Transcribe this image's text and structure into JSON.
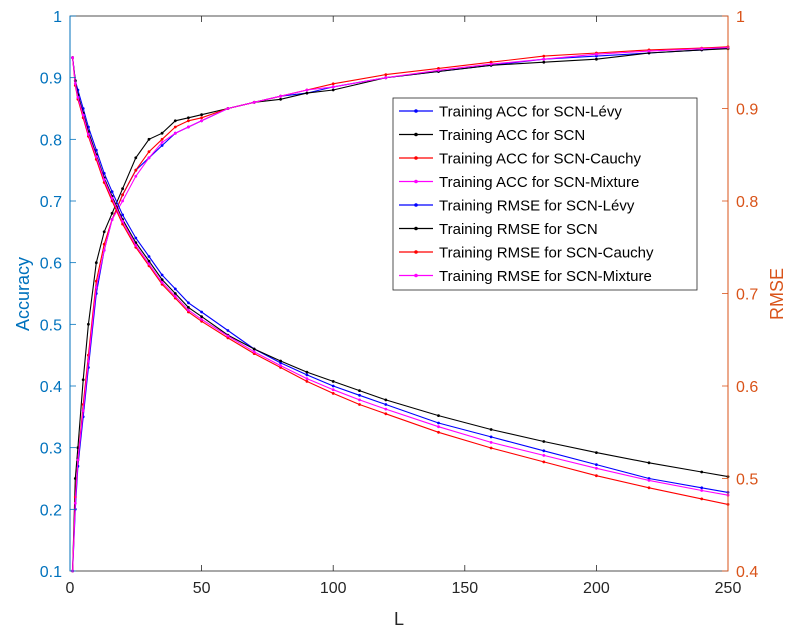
{
  "chart_data": {
    "type": "line",
    "xlabel": "L",
    "ylabel_left": "Accuracy",
    "ylabel_right": "RMSE",
    "xlim": [
      0,
      250
    ],
    "ylim_left": [
      0.1,
      1
    ],
    "ylim_right": [
      0.4,
      1
    ],
    "xticks": [
      "0",
      "50",
      "100",
      "150",
      "200",
      "250"
    ],
    "yticks_left": [
      "0.1",
      "0.2",
      "0.3",
      "0.4",
      "0.5",
      "0.6",
      "0.7",
      "0.8",
      "0.9",
      "1"
    ],
    "yticks_right": [
      "0.4",
      "0.5",
      "0.6",
      "0.7",
      "0.8",
      "0.9",
      "1"
    ],
    "left_axis_color": "#0072BD",
    "right_axis_color": "#D95319",
    "grid": false,
    "legend_position": "upper-right-inside",
    "legend": [
      "Training ACC for SCN-Lévy",
      "Training ACC for SCN",
      "Training ACC for SCN-Cauchy",
      "Training ACC for SCN-Mixture",
      "Training RMSE for SCN-Lévy",
      "Training RMSE for SCN",
      "Training RMSE for SCN-Cauchy",
      "Training RMSE for SCN-Mixture"
    ],
    "series": [
      {
        "name": "Training ACC for SCN-Lévy",
        "axis": "left",
        "color": "#0000ff",
        "x": [
          1,
          2,
          3,
          5,
          7,
          10,
          13,
          16,
          20,
          25,
          30,
          35,
          40,
          45,
          50,
          60,
          70,
          80,
          90,
          100,
          120,
          140,
          160,
          180,
          200,
          220,
          240,
          250
        ],
        "y": [
          0.1,
          0.2,
          0.27,
          0.35,
          0.43,
          0.55,
          0.62,
          0.67,
          0.71,
          0.75,
          0.77,
          0.79,
          0.81,
          0.82,
          0.83,
          0.85,
          0.86,
          0.87,
          0.875,
          0.885,
          0.9,
          0.91,
          0.92,
          0.93,
          0.935,
          0.94,
          0.945,
          0.948
        ]
      },
      {
        "name": "Training ACC for SCN",
        "axis": "left",
        "color": "#000000",
        "x": [
          1,
          2,
          3,
          5,
          7,
          10,
          13,
          16,
          20,
          25,
          30,
          35,
          40,
          45,
          50,
          60,
          70,
          80,
          90,
          100,
          120,
          140,
          160,
          180,
          200,
          220,
          240,
          250
        ],
        "y": [
          0.1,
          0.25,
          0.3,
          0.41,
          0.5,
          0.6,
          0.65,
          0.68,
          0.72,
          0.77,
          0.8,
          0.81,
          0.83,
          0.835,
          0.84,
          0.85,
          0.86,
          0.865,
          0.875,
          0.88,
          0.9,
          0.91,
          0.92,
          0.925,
          0.93,
          0.94,
          0.945,
          0.947
        ]
      },
      {
        "name": "Training ACC for SCN-Cauchy",
        "axis": "left",
        "color": "#ff0000",
        "x": [
          1,
          2,
          3,
          5,
          7,
          10,
          13,
          16,
          20,
          25,
          30,
          35,
          40,
          45,
          50,
          60,
          70,
          80,
          90,
          100,
          120,
          140,
          160,
          180,
          200,
          220,
          240,
          250
        ],
        "y": [
          0.1,
          0.22,
          0.28,
          0.37,
          0.45,
          0.57,
          0.63,
          0.67,
          0.71,
          0.75,
          0.78,
          0.8,
          0.82,
          0.83,
          0.835,
          0.85,
          0.86,
          0.87,
          0.88,
          0.89,
          0.905,
          0.915,
          0.925,
          0.935,
          0.94,
          0.945,
          0.948,
          0.95
        ]
      },
      {
        "name": "Training ACC for SCN-Mixture",
        "axis": "left",
        "color": "#ff00ff",
        "x": [
          1,
          2,
          3,
          5,
          7,
          10,
          13,
          16,
          20,
          25,
          30,
          35,
          40,
          45,
          50,
          60,
          70,
          80,
          90,
          100,
          120,
          140,
          160,
          180,
          200,
          220,
          240,
          250
        ],
        "y": [
          0.1,
          0.21,
          0.28,
          0.36,
          0.44,
          0.56,
          0.62,
          0.67,
          0.7,
          0.74,
          0.77,
          0.795,
          0.81,
          0.82,
          0.83,
          0.85,
          0.86,
          0.87,
          0.88,
          0.885,
          0.9,
          0.912,
          0.922,
          0.93,
          0.938,
          0.943,
          0.947,
          0.949
        ]
      },
      {
        "name": "Training RMSE for SCN-Lévy",
        "axis": "right",
        "color": "#0000ff",
        "x": [
          1,
          2,
          3,
          5,
          7,
          10,
          13,
          16,
          20,
          25,
          30,
          35,
          40,
          45,
          50,
          60,
          70,
          80,
          90,
          100,
          110,
          120,
          140,
          160,
          180,
          200,
          220,
          240,
          250
        ],
        "y": [
          0.955,
          0.93,
          0.92,
          0.9,
          0.88,
          0.855,
          0.83,
          0.81,
          0.785,
          0.76,
          0.74,
          0.72,
          0.705,
          0.69,
          0.68,
          0.66,
          0.64,
          0.625,
          0.612,
          0.6,
          0.59,
          0.58,
          0.56,
          0.545,
          0.53,
          0.515,
          0.5,
          0.49,
          0.485
        ]
      },
      {
        "name": "Training RMSE for SCN",
        "axis": "right",
        "color": "#000000",
        "x": [
          1,
          2,
          3,
          5,
          7,
          10,
          13,
          16,
          20,
          25,
          30,
          35,
          40,
          45,
          50,
          60,
          70,
          80,
          90,
          100,
          110,
          120,
          140,
          160,
          180,
          200,
          220,
          240,
          250
        ],
        "y": [
          0.955,
          0.93,
          0.915,
          0.895,
          0.875,
          0.85,
          0.825,
          0.805,
          0.78,
          0.755,
          0.735,
          0.715,
          0.7,
          0.685,
          0.675,
          0.655,
          0.64,
          0.627,
          0.615,
          0.605,
          0.595,
          0.585,
          0.568,
          0.553,
          0.54,
          0.528,
          0.517,
          0.507,
          0.502
        ]
      },
      {
        "name": "Training RMSE for SCN-Cauchy",
        "axis": "right",
        "color": "#ff0000",
        "x": [
          1,
          2,
          3,
          5,
          7,
          10,
          13,
          16,
          20,
          25,
          30,
          35,
          40,
          45,
          50,
          60,
          70,
          80,
          90,
          100,
          110,
          120,
          140,
          160,
          180,
          200,
          220,
          240,
          250
        ],
        "y": [
          0.955,
          0.925,
          0.91,
          0.89,
          0.87,
          0.845,
          0.82,
          0.8,
          0.775,
          0.75,
          0.73,
          0.71,
          0.695,
          0.68,
          0.67,
          0.652,
          0.635,
          0.62,
          0.605,
          0.592,
          0.58,
          0.57,
          0.55,
          0.533,
          0.518,
          0.503,
          0.49,
          0.478,
          0.472
        ]
      },
      {
        "name": "Training RMSE for SCN-Mixture",
        "axis": "right",
        "color": "#ff00ff",
        "x": [
          1,
          2,
          3,
          5,
          7,
          10,
          13,
          16,
          20,
          25,
          30,
          35,
          40,
          45,
          50,
          60,
          70,
          80,
          90,
          100,
          110,
          120,
          140,
          160,
          180,
          200,
          220,
          240,
          250
        ],
        "y": [
          0.955,
          0.927,
          0.912,
          0.893,
          0.872,
          0.848,
          0.823,
          0.803,
          0.778,
          0.752,
          0.732,
          0.712,
          0.697,
          0.682,
          0.672,
          0.654,
          0.637,
          0.622,
          0.608,
          0.596,
          0.585,
          0.575,
          0.556,
          0.539,
          0.525,
          0.511,
          0.498,
          0.487,
          0.482
        ]
      }
    ]
  }
}
